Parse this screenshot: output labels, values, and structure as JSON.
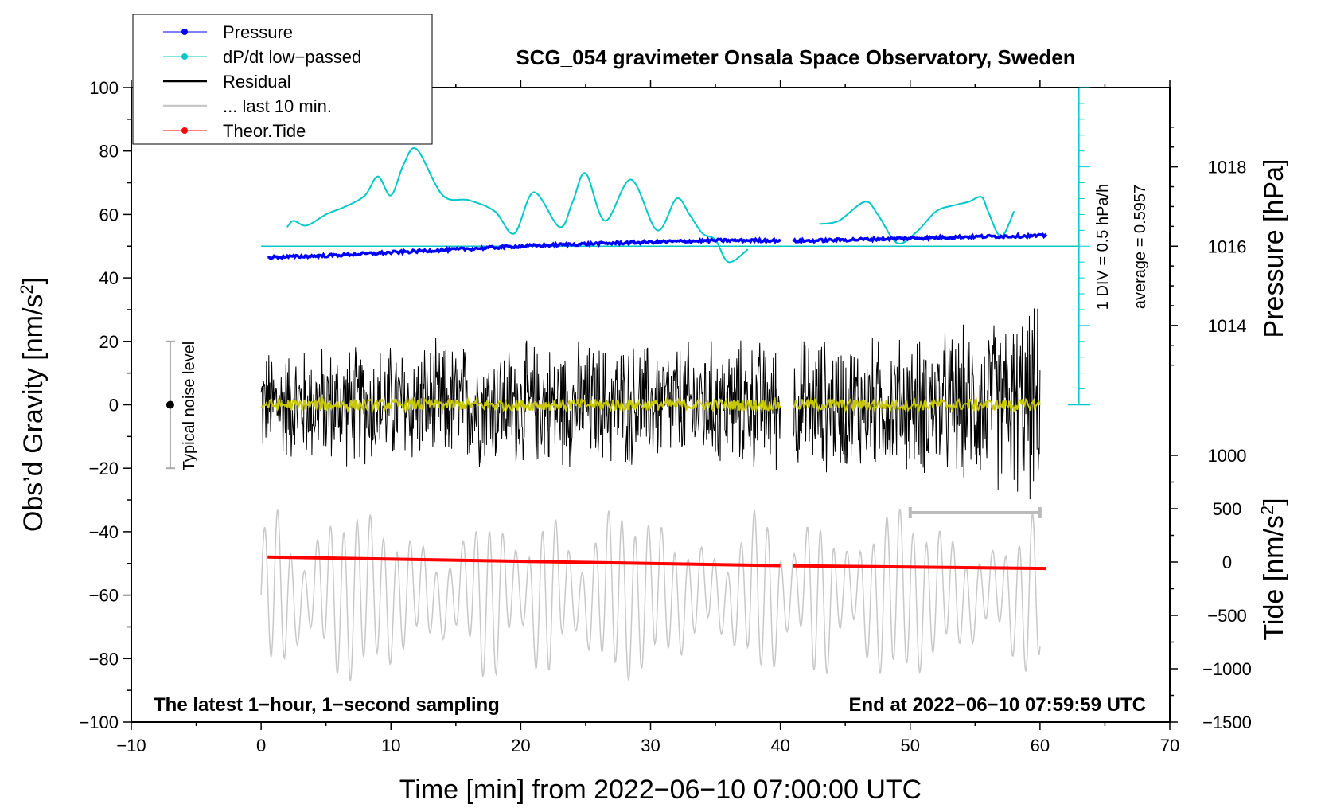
{
  "chart_data": {
    "type": "line",
    "title": "SCG_054 gravimeter Onsala Space Observatory, Sweden",
    "xlabel": "Time [min] from 2022−06−10 07:00:00 UTC",
    "ylabel_left_prefix": "Obs’d Gravity [nm/s",
    "ylabel_left_sup": "2",
    "ylabel_left_suffix": "]",
    "ylabel_right_top": "Pressure [hPa]",
    "ylabel_right_bottom_prefix": "Tide [nm/s",
    "ylabel_right_bottom_sup": "2",
    "ylabel_right_bottom_suffix": "]",
    "xlim": [
      -10,
      70
    ],
    "ylim": [
      -100,
      100
    ],
    "x_ticks": [
      -10,
      0,
      10,
      20,
      30,
      40,
      50,
      60,
      70
    ],
    "x_tick_labels": [
      "−10",
      "0",
      "10",
      "20",
      "30",
      "40",
      "50",
      "60",
      "70"
    ],
    "y_ticks": [
      100,
      80,
      60,
      40,
      20,
      0,
      -20,
      -40,
      -60,
      -80,
      -100
    ],
    "y_tick_labels": [
      "100",
      "80",
      "60",
      "40",
      "20",
      "0",
      "−20",
      "−40",
      "−60",
      "−80",
      "−100"
    ],
    "pressure_axis": {
      "ticks": [
        1018,
        1016,
        1014
      ],
      "tick_labels": [
        "1018",
        "1016",
        "1014"
      ],
      "left_scale_equivalents": [
        75,
        50,
        25
      ]
    },
    "tide_axis": {
      "ticks": [
        1000,
        500,
        0,
        -500,
        -1000,
        -1500
      ],
      "tick_labels": [
        "1000",
        "500",
        "0",
        "−500",
        "−1000",
        "−1500"
      ],
      "range": [
        -1500,
        1000
      ]
    },
    "legend": [
      {
        "label": "Pressure",
        "color": "#0000ff",
        "style": "line-dot"
      },
      {
        "label": "dP/dt low−passed",
        "color": "#00c8c8",
        "style": "line-dot"
      },
      {
        "label": "Residual",
        "color": "#000000",
        "style": "line"
      },
      {
        "label": "... last 10 min.",
        "color": "#c8c8c8",
        "style": "line"
      },
      {
        "label": "Theor.Tide",
        "color": "#ff0000",
        "style": "line-dot"
      }
    ],
    "series": [
      {
        "name": "Pressure",
        "color": "#0000ff",
        "x": [
          0.5,
          5,
          10,
          15,
          20,
          25,
          30,
          35,
          40,
          41,
          45,
          50,
          55,
          60.5
        ],
        "values": [
          46.5,
          47,
          48,
          49,
          50,
          50.7,
          51.3,
          51.8,
          51.8,
          51.6,
          52,
          52.5,
          53,
          53.3
        ]
      },
      {
        "name": "dP/dt low−passed",
        "color": "#00c8c8",
        "x": [
          2,
          2.5,
          3.5,
          5,
          6.5,
          8,
          9,
          10,
          11,
          12,
          14,
          16,
          18,
          19.5,
          21,
          23,
          24,
          25,
          26.5,
          28.5,
          30.5,
          32,
          33,
          34,
          35,
          36,
          37.5
        ],
        "values": [
          56,
          58,
          56.5,
          60,
          62.5,
          66,
          72,
          66,
          76,
          80.5,
          66,
          64.5,
          61,
          54,
          67,
          56,
          64,
          73,
          58,
          71,
          55,
          65,
          60,
          54,
          52,
          45,
          49
        ],
        "x2": [
          43,
          44.5,
          46.5,
          47.5,
          49,
          50.5,
          52,
          53.5,
          54.5,
          55.5,
          56,
          57,
          58
        ],
        "values2": [
          57,
          58,
          64,
          60,
          51,
          54.5,
          61,
          63,
          64,
          65.5,
          61,
          53,
          61
        ]
      },
      {
        "name": "Residual",
        "color": "#000000",
        "note": "1-second residual, roughly within ±25 nm/s² with spikes to +37 / −31; gap 40–41 min",
        "envelope_x": [
          0,
          10,
          20,
          30,
          40,
          41,
          50,
          55,
          60
        ],
        "envelope_amplitude": [
          20,
          22,
          22,
          22,
          23,
          24,
          24,
          28,
          35
        ]
      },
      {
        "name": "... last 10 min.",
        "color": "#c8c8c8",
        "note": "last 10 minutes of residual (x-scaled over 0–60 min), roughly −85 to −35 nm/s²",
        "center": -60,
        "amplitude_range": [
          10,
          24
        ]
      },
      {
        "name": "Theor.Tide",
        "color": "#ff0000",
        "x": [
          0.5,
          20,
          40,
          60.5
        ],
        "values": [
          -48,
          -49.3,
          -50.7,
          -51.6
        ]
      }
    ],
    "annotations": {
      "noise_label": "Typical noise level",
      "noise_bar": [
        -20,
        20
      ],
      "pressure_scale_1": "1 DIV = 0.5 hPa/h",
      "pressure_scale_2": "average = 0.5957",
      "note_left": "The latest 1−hour, 1−second sampling",
      "note_right": "End at 2022−06−10 07:59:59 UTC",
      "last10_bracket": [
        50,
        60
      ]
    }
  }
}
